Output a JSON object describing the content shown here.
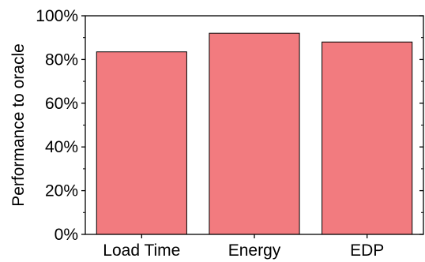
{
  "chart_data": {
    "type": "bar",
    "categories": [
      "Load Time",
      "Energy",
      "EDP"
    ],
    "values": [
      83.5,
      92,
      88
    ],
    "ylabel": "Performance to oracle",
    "xlabel": "",
    "ylim": [
      0,
      100
    ],
    "yticks": [
      0,
      20,
      40,
      60,
      80,
      100
    ],
    "ytick_labels": [
      "0%",
      "20%",
      "40%",
      "60%",
      "80%",
      "100%"
    ],
    "grid": false,
    "bar_color": "#f27b7f",
    "bar_edge_color": "#000000"
  }
}
